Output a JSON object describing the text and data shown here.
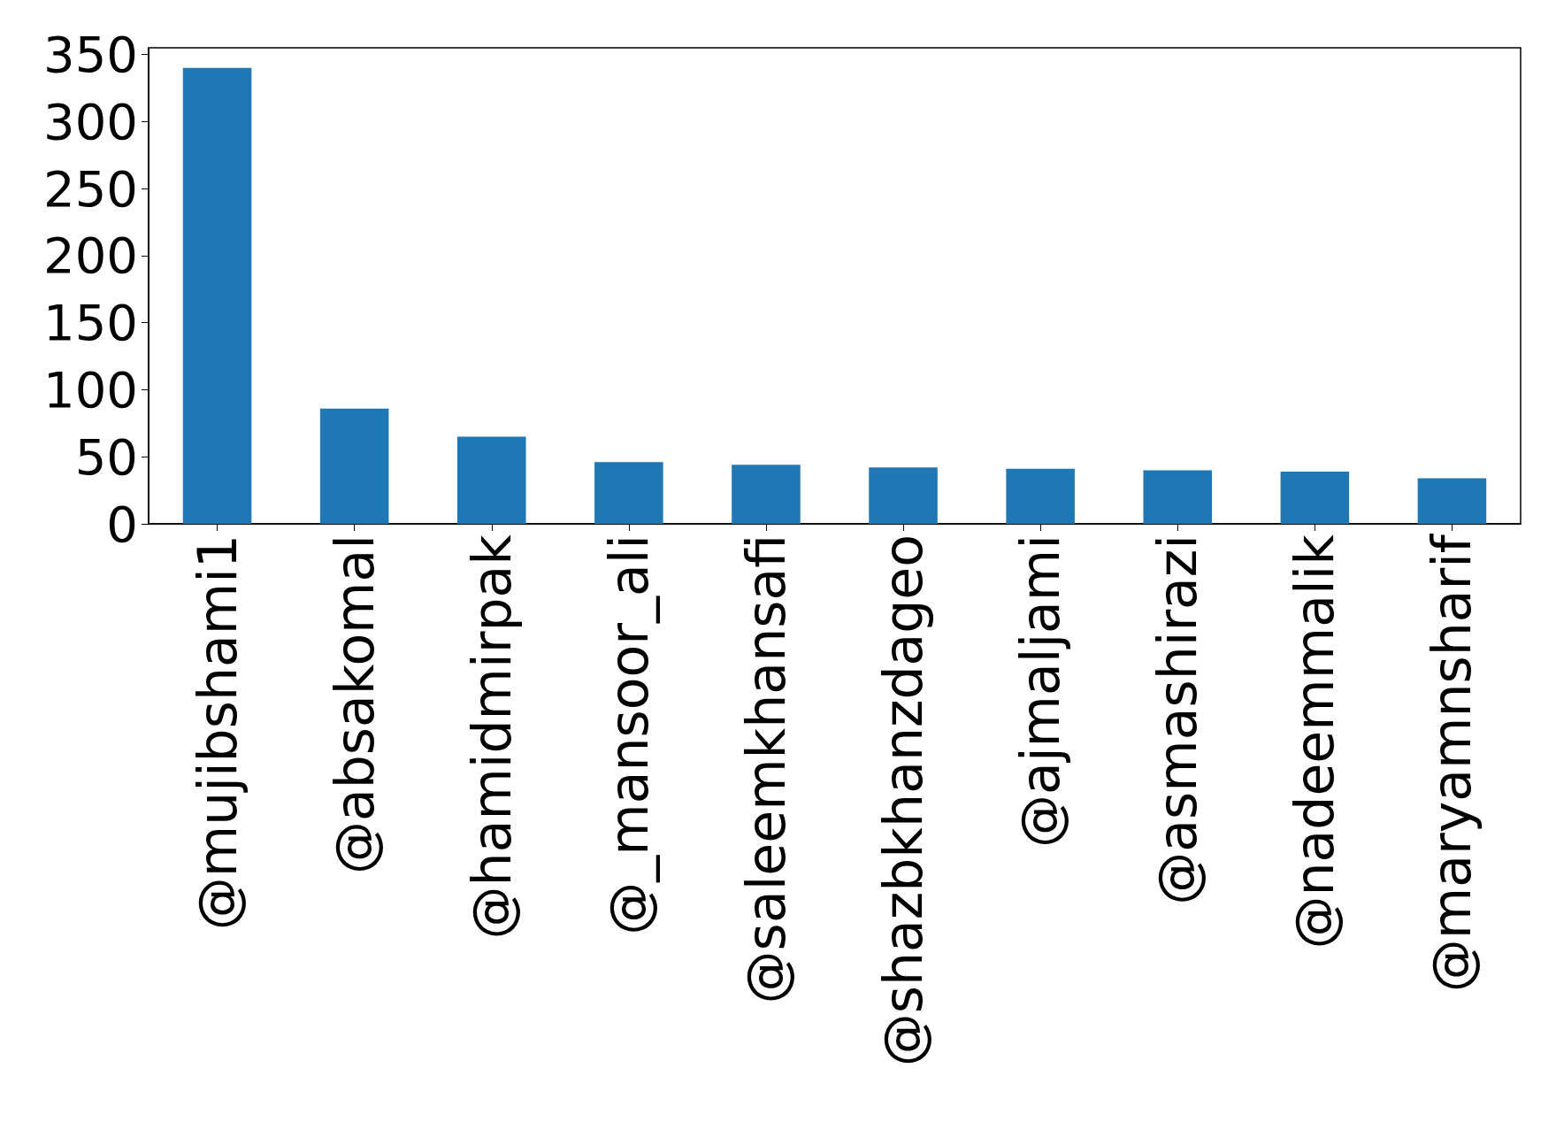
{
  "chart_data": {
    "type": "bar",
    "categories": [
      "@mujibshami1",
      "@absakomal",
      "@hamidmirpak",
      "@_mansoor_ali",
      "@saleemkhansafi",
      "@shazbkhanzdageo",
      "@ajmaljami",
      "@asmashirazi",
      "@nadeemmalik",
      "@maryamnsharif"
    ],
    "values": [
      340,
      86,
      65,
      46,
      44,
      42,
      41,
      40,
      39,
      34
    ],
    "color": "#1f77b4",
    "ylim": [
      0,
      355
    ],
    "yticks": [
      0,
      50,
      100,
      150,
      200,
      250,
      300,
      350
    ],
    "grid": false
  }
}
